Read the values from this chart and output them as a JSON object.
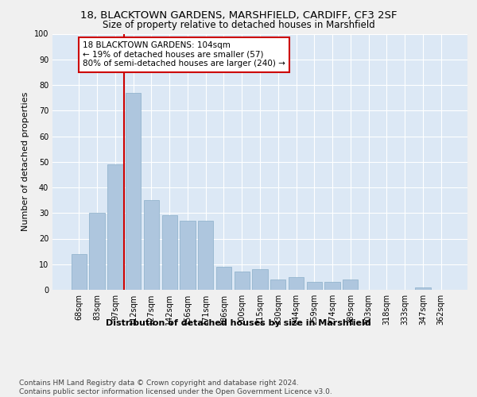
{
  "title": "18, BLACKTOWN GARDENS, MARSHFIELD, CARDIFF, CF3 2SF",
  "subtitle": "Size of property relative to detached houses in Marshfield",
  "xlabel": "Distribution of detached houses by size in Marshfield",
  "ylabel": "Number of detached properties",
  "categories": [
    "68sqm",
    "83sqm",
    "97sqm",
    "112sqm",
    "127sqm",
    "142sqm",
    "156sqm",
    "171sqm",
    "186sqm",
    "200sqm",
    "215sqm",
    "230sqm",
    "244sqm",
    "259sqm",
    "274sqm",
    "289sqm",
    "303sqm",
    "318sqm",
    "333sqm",
    "347sqm",
    "362sqm"
  ],
  "values": [
    14,
    30,
    49,
    77,
    35,
    29,
    27,
    27,
    9,
    7,
    8,
    4,
    5,
    3,
    3,
    4,
    0,
    0,
    0,
    1,
    0
  ],
  "bar_color": "#aec6de",
  "bar_edge_color": "#8aaec8",
  "vline_x_index": 2,
  "vline_color": "#cc0000",
  "annotation_line1": "18 BLACKTOWN GARDENS: 104sqm",
  "annotation_line2": "← 19% of detached houses are smaller (57)",
  "annotation_line3": "80% of semi-detached houses are larger (240) →",
  "annotation_box_color": "#cc0000",
  "background_color": "#dce8f5",
  "fig_background_color": "#f0f0f0",
  "grid_color": "#ffffff",
  "ylim": [
    0,
    100
  ],
  "yticks": [
    0,
    10,
    20,
    30,
    40,
    50,
    60,
    70,
    80,
    90,
    100
  ],
  "footer_text": "Contains HM Land Registry data © Crown copyright and database right 2024.\nContains public sector information licensed under the Open Government Licence v3.0.",
  "title_fontsize": 9.5,
  "subtitle_fontsize": 8.5,
  "xlabel_fontsize": 8,
  "ylabel_fontsize": 8,
  "tick_fontsize": 7,
  "annotation_fontsize": 7.5,
  "footer_fontsize": 6.5
}
